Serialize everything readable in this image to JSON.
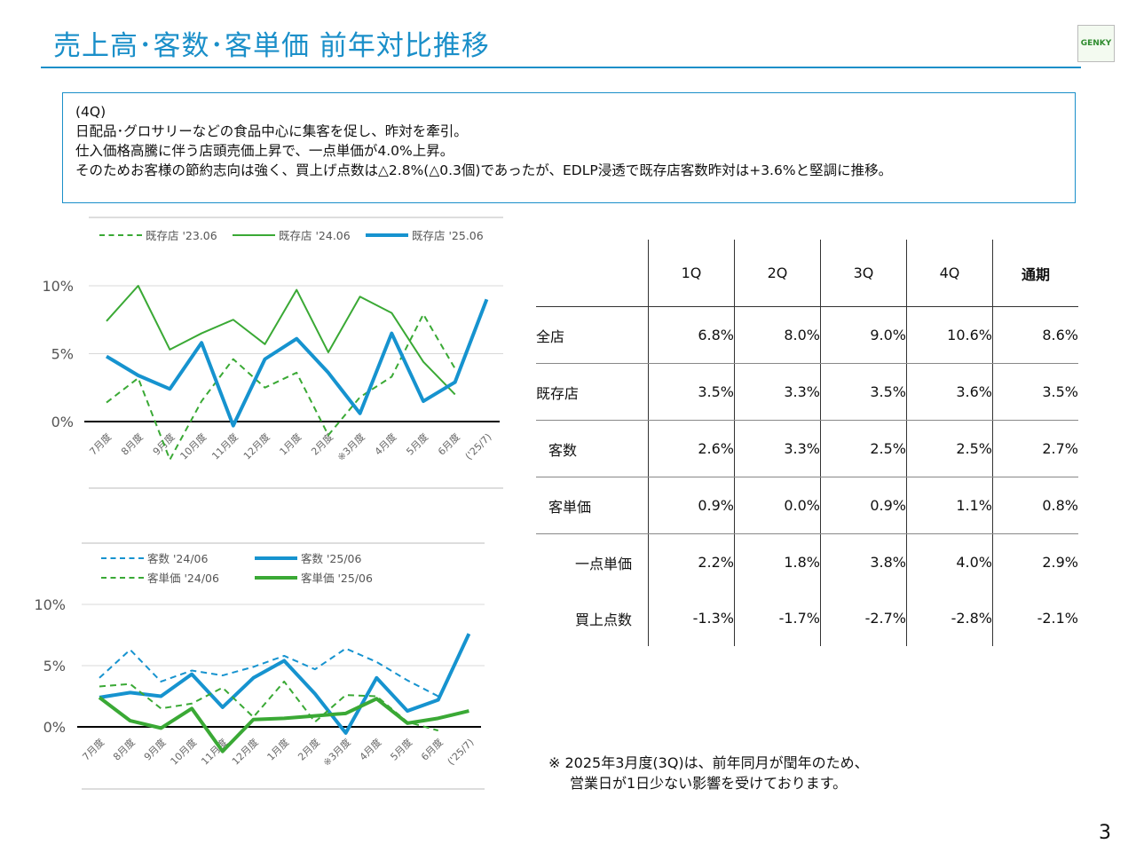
{
  "header": {
    "title": "売上高･客数･客単価 前年対比推移",
    "logo_text": "GENKY"
  },
  "note": {
    "lines": [
      "(4Q)",
      "日配品･グロサリーなどの食品中心に集客を促し、昨対を牽引。",
      "仕入価格高騰に伴う店頭売価上昇で、一点単価が4.0%上昇。",
      "そのためお客様の節約志向は強く、買上げ点数は△2.8%(△0.3個)であったが、EDLP浸透で既存店客数昨対は+3.6%と堅調に推移。"
    ]
  },
  "table": {
    "columns": [
      "",
      "1Q",
      "2Q",
      "3Q",
      "4Q",
      "通期"
    ],
    "rows": [
      {
        "label": "全店",
        "values": [
          "6.8%",
          "8.0%",
          "9.0%",
          "10.6%",
          "8.6%"
        ]
      },
      {
        "label": "既存店",
        "values": [
          "3.5%",
          "3.3%",
          "3.5%",
          "3.6%",
          "3.5%"
        ]
      },
      {
        "label": "客数",
        "values": [
          "2.6%",
          "3.3%",
          "2.5%",
          "2.5%",
          "2.7%"
        ]
      },
      {
        "label": "客単価",
        "values": [
          "0.9%",
          "0.0%",
          "0.9%",
          "1.1%",
          "0.8%"
        ]
      },
      {
        "label": "一点単価",
        "values": [
          "2.2%",
          "1.8%",
          "3.8%",
          "4.0%",
          "2.9%"
        ]
      },
      {
        "label": "買上点数",
        "values": [
          "-1.3%",
          "-1.7%",
          "-2.7%",
          "-2.8%",
          "-2.1%"
        ]
      }
    ]
  },
  "footnote": {
    "lines": [
      "※ 2025年3月度(3Q)は、前年同月が閏年のため、",
      "営業日が1日少ない影響を受けております。"
    ]
  },
  "page_number": "3",
  "chart_data": [
    {
      "type": "line",
      "categories": [
        "7月度",
        "8月度",
        "9月度",
        "10月度",
        "11月度",
        "12月度",
        "1月度",
        "2月度",
        "※3月度",
        "4月度",
        "5月度",
        "6月度",
        "('25/7)"
      ],
      "yticks": [
        "0%",
        "5%",
        "10%"
      ],
      "ylim": [
        -3,
        10
      ],
      "grid": true,
      "legend": "top",
      "series": [
        {
          "name": "既存店 '23.06",
          "color": "#3aa935",
          "dash": true,
          "width": 2,
          "values": [
            1.4,
            3.2,
            -2.8,
            1.5,
            4.6,
            2.5,
            3.6,
            -1.0,
            1.8,
            3.3,
            7.9,
            3.9,
            null
          ]
        },
        {
          "name": "既存店 '24.06",
          "color": "#3aa935",
          "dash": false,
          "width": 2,
          "values": [
            7.4,
            10.0,
            5.3,
            6.5,
            7.5,
            5.7,
            9.7,
            5.1,
            9.2,
            8.0,
            4.4,
            2.0,
            null
          ]
        },
        {
          "name": "既存店 '25.06",
          "color": "#1693cf",
          "dash": false,
          "width": 4,
          "values": [
            4.8,
            3.4,
            2.4,
            5.8,
            -0.3,
            4.6,
            6.1,
            3.6,
            0.6,
            6.5,
            1.5,
            2.9,
            9.0
          ]
        }
      ]
    },
    {
      "type": "line",
      "categories": [
        "7月度",
        "8月度",
        "9月度",
        "10月度",
        "11月度",
        "12月度",
        "1月度",
        "2月度",
        "※3月度",
        "4月度",
        "5月度",
        "6月度",
        "('25/7)"
      ],
      "yticks": [
        "0%",
        "5%",
        "10%"
      ],
      "ylim": [
        -2,
        10
      ],
      "grid": true,
      "legend": "top",
      "series": [
        {
          "name": "客数 '24/06",
          "color": "#1693cf",
          "dash": true,
          "width": 2,
          "values": [
            4.0,
            6.3,
            3.7,
            4.6,
            4.2,
            4.9,
            5.8,
            4.7,
            6.4,
            5.3,
            3.8,
            2.5,
            null
          ]
        },
        {
          "name": "客数 '25/06",
          "color": "#1693cf",
          "dash": false,
          "width": 4,
          "values": [
            2.4,
            2.8,
            2.5,
            4.3,
            1.6,
            4.0,
            5.4,
            2.7,
            -0.5,
            4.0,
            1.3,
            2.2,
            7.6
          ]
        },
        {
          "name": "客単価 '24/06",
          "color": "#3aa935",
          "dash": true,
          "width": 2,
          "values": [
            3.3,
            3.5,
            1.5,
            1.9,
            3.2,
            0.8,
            3.7,
            0.4,
            2.6,
            2.5,
            0.4,
            -0.3,
            null
          ]
        },
        {
          "name": "客単価 '25/06",
          "color": "#3aa935",
          "dash": false,
          "width": 4,
          "values": [
            2.4,
            0.5,
            -0.1,
            1.5,
            -2.0,
            0.6,
            0.7,
            0.9,
            1.1,
            2.3,
            0.3,
            0.7,
            1.3
          ]
        }
      ]
    }
  ]
}
